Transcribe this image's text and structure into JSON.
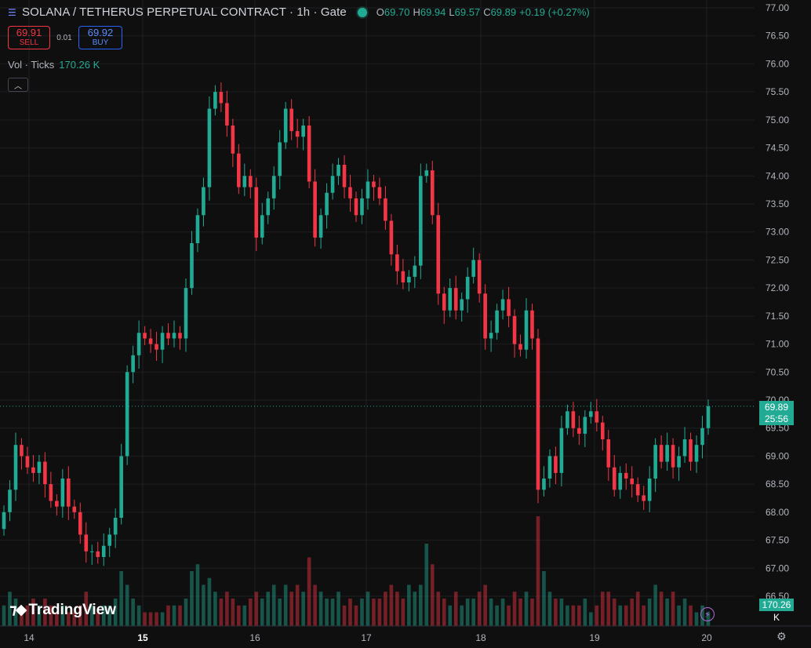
{
  "header": {
    "symbol": "SOLANA / TETHERUS PERPETUAL CONTRACT · 1h · Gate",
    "ohlc": [
      {
        "k": "O",
        "v": "69.70"
      },
      {
        "k": "H",
        "v": "69.94"
      },
      {
        "k": "L",
        "v": "69.57"
      },
      {
        "k": "C",
        "v": "69.89"
      }
    ],
    "change": "+0.19 (+0.27%)"
  },
  "trade": {
    "sell_price": "69.91",
    "sell_label": "SELL",
    "spread": "0.01",
    "buy_price": "69.92",
    "buy_label": "BUY"
  },
  "volume": {
    "label": "Vol · Ticks",
    "value": "170.26 K"
  },
  "price_badge": {
    "price": "69.89",
    "countdown": "25:56"
  },
  "volume_badge": "170.26 K",
  "logo": "TradingView",
  "colors": {
    "up": "#22ab94",
    "down": "#f23645",
    "background": "#0f0f0f",
    "grid": "#1e1f22"
  },
  "chart_data": {
    "type": "candlestick",
    "title": "SOLANA / TETHERUS PERPETUAL CONTRACT · 1h · Gate",
    "ylim": [
      66.5,
      77.0
    ],
    "y_ticks": [
      "77.00",
      "76.50",
      "76.00",
      "75.50",
      "75.00",
      "74.50",
      "74.00",
      "73.50",
      "73.00",
      "72.50",
      "72.00",
      "71.50",
      "71.00",
      "70.50",
      "70.00",
      "69.50",
      "69.00",
      "68.50",
      "68.00",
      "67.50",
      "67.00",
      "66.50"
    ],
    "x_ticks": [
      "14",
      "15",
      "16",
      "17",
      "18",
      "19",
      "20"
    ],
    "bold_x_tick": "15",
    "last_price": 69.89,
    "closes": [
      68.0,
      68.4,
      69.2,
      69.0,
      68.8,
      68.7,
      68.9,
      68.5,
      68.2,
      68.1,
      68.6,
      68.1,
      68.0,
      67.6,
      67.3,
      67.3,
      67.2,
      67.4,
      67.6,
      67.9,
      69.0,
      70.5,
      70.8,
      71.2,
      71.1,
      71.0,
      70.9,
      71.2,
      71.1,
      71.2,
      71.1,
      72.0,
      72.8,
      73.3,
      73.8,
      75.2,
      75.5,
      75.3,
      74.9,
      74.4,
      73.8,
      74.0,
      73.8,
      72.9,
      73.3,
      73.6,
      74.0,
      74.6,
      75.2,
      74.8,
      74.7,
      74.9,
      73.9,
      72.9,
      73.3,
      73.7,
      74.0,
      74.2,
      73.8,
      73.6,
      73.3,
      73.6,
      73.9,
      73.8,
      73.6,
      73.2,
      72.6,
      72.3,
      72.1,
      72.2,
      72.4,
      74.0,
      74.1,
      73.3,
      71.9,
      71.6,
      72.0,
      71.6,
      71.8,
      72.2,
      72.5,
      71.9,
      71.1,
      71.2,
      71.6,
      71.8,
      71.5,
      71.0,
      70.9,
      71.6,
      71.1,
      68.4,
      68.6,
      69.0,
      68.7,
      69.5,
      69.8,
      69.5,
      69.4,
      69.7,
      69.8,
      69.6,
      69.3,
      68.8,
      68.4,
      68.7,
      68.6,
      68.5,
      68.3,
      68.2,
      68.6,
      69.2,
      68.9,
      69.2,
      68.8,
      69.0,
      69.3,
      68.9,
      69.2,
      69.5,
      69.89
    ],
    "volumes": [
      0.3,
      0.5,
      0.4,
      0.2,
      0.3,
      0.4,
      0.3,
      0.4,
      0.3,
      0.2,
      0.3,
      0.2,
      0.2,
      0.3,
      0.5,
      0.3,
      0.2,
      0.3,
      0.3,
      0.4,
      0.8,
      0.6,
      0.4,
      0.3,
      0.2,
      0.2,
      0.2,
      0.2,
      0.3,
      0.3,
      0.3,
      0.4,
      0.8,
      0.9,
      0.6,
      0.7,
      0.5,
      0.4,
      0.5,
      0.4,
      0.3,
      0.3,
      0.4,
      0.5,
      0.4,
      0.5,
      0.6,
      0.4,
      0.6,
      0.5,
      0.6,
      0.5,
      1.0,
      0.6,
      0.5,
      0.4,
      0.4,
      0.5,
      0.3,
      0.4,
      0.3,
      0.4,
      0.5,
      0.4,
      0.4,
      0.5,
      0.6,
      0.5,
      0.4,
      0.6,
      0.5,
      0.6,
      1.2,
      0.9,
      0.5,
      0.4,
      0.3,
      0.5,
      0.3,
      0.4,
      0.4,
      0.5,
      0.6,
      0.4,
      0.3,
      0.4,
      0.3,
      0.5,
      0.4,
      0.5,
      0.4,
      1.6,
      0.8,
      0.5,
      0.4,
      0.4,
      0.3,
      0.3,
      0.3,
      0.4,
      0.2,
      0.3,
      0.5,
      0.5,
      0.4,
      0.3,
      0.3,
      0.4,
      0.5,
      0.3,
      0.4,
      0.6,
      0.5,
      0.4,
      0.5,
      0.3,
      0.4,
      0.3,
      0.2,
      0.3,
      0.2
    ]
  }
}
